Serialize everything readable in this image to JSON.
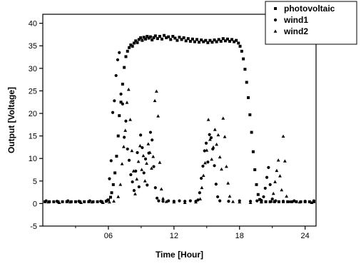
{
  "chart_data": {
    "type": "scatter",
    "title": "",
    "xlabel": "Time [Hour]",
    "ylabel": "Output [Voltage]",
    "xlim": [
      0,
      25
    ],
    "ylim": [
      -5,
      42
    ],
    "grid": false,
    "legend_position": "top-right",
    "x_tick_values": [
      6,
      12,
      18,
      24
    ],
    "x_tick_labels": [
      "06",
      "12",
      "18",
      "24"
    ],
    "y_tick_values": [
      -5,
      0,
      5,
      10,
      15,
      20,
      25,
      30,
      35,
      40
    ],
    "y_tick_labels": [
      "-5",
      "0",
      "5",
      "10",
      "15",
      "20",
      "25",
      "30",
      "35",
      "40"
    ],
    "series": [
      {
        "name": "photovoltaic",
        "marker": "square",
        "points": [
          [
            0.2,
            0.4
          ],
          [
            0.6,
            0.4
          ],
          [
            1.0,
            0.4
          ],
          [
            1.4,
            0.4
          ],
          [
            1.8,
            0.4
          ],
          [
            2.2,
            0.4
          ],
          [
            2.6,
            0.4
          ],
          [
            3.0,
            0.4
          ],
          [
            3.4,
            0.4
          ],
          [
            3.8,
            0.4
          ],
          [
            4.2,
            0.4
          ],
          [
            4.6,
            0.4
          ],
          [
            5.0,
            0.4
          ],
          [
            5.4,
            0.4
          ],
          [
            5.8,
            0.5
          ],
          [
            6.0,
            0.8
          ],
          [
            6.2,
            1.4
          ],
          [
            6.3,
            2.4
          ],
          [
            6.45,
            4.2
          ],
          [
            6.6,
            6.8
          ],
          [
            6.75,
            10.5
          ],
          [
            6.9,
            15.0
          ],
          [
            7.0,
            19.5
          ],
          [
            7.15,
            22.5
          ],
          [
            7.3,
            26.5
          ],
          [
            7.45,
            30.2
          ],
          [
            7.6,
            32.6
          ],
          [
            7.75,
            33.8
          ],
          [
            7.9,
            34.6
          ],
          [
            8.05,
            35.2
          ],
          [
            8.2,
            34.9
          ],
          [
            8.35,
            35.6
          ],
          [
            8.5,
            36.1
          ],
          [
            8.65,
            35.7
          ],
          [
            8.8,
            36.4
          ],
          [
            8.95,
            36.8
          ],
          [
            9.1,
            36.2
          ],
          [
            9.25,
            36.9
          ],
          [
            9.4,
            36.5
          ],
          [
            9.55,
            37.1
          ],
          [
            9.7,
            36.7
          ],
          [
            9.85,
            37.0
          ],
          [
            10.0,
            36.3
          ],
          [
            10.15,
            36.8
          ],
          [
            10.3,
            37.2
          ],
          [
            10.5,
            36.6
          ],
          [
            10.7,
            37.1
          ],
          [
            10.9,
            36.5
          ],
          [
            11.1,
            37.3
          ],
          [
            11.3,
            36.8
          ],
          [
            11.5,
            37.0
          ],
          [
            11.7,
            36.4
          ],
          [
            11.9,
            37.1
          ],
          [
            12.1,
            36.7
          ],
          [
            12.3,
            36.2
          ],
          [
            12.5,
            36.9
          ],
          [
            12.7,
            36.4
          ],
          [
            12.9,
            36.8
          ],
          [
            13.1,
            36.1
          ],
          [
            13.3,
            36.6
          ],
          [
            13.5,
            36.0
          ],
          [
            13.7,
            36.5
          ],
          [
            13.9,
            35.9
          ],
          [
            14.1,
            36.4
          ],
          [
            14.3,
            35.8
          ],
          [
            14.5,
            36.3
          ],
          [
            14.7,
            35.9
          ],
          [
            14.9,
            36.2
          ],
          [
            15.1,
            35.7
          ],
          [
            15.3,
            36.2
          ],
          [
            15.5,
            35.8
          ],
          [
            15.7,
            36.3
          ],
          [
            15.9,
            35.9
          ],
          [
            16.1,
            36.4
          ],
          [
            16.3,
            36.0
          ],
          [
            16.5,
            36.6
          ],
          [
            16.7,
            36.1
          ],
          [
            16.9,
            36.5
          ],
          [
            17.1,
            36.0
          ],
          [
            17.3,
            36.4
          ],
          [
            17.5,
            35.9
          ],
          [
            17.7,
            36.2
          ],
          [
            17.9,
            35.6
          ],
          [
            18.05,
            34.9
          ],
          [
            18.2,
            33.8
          ],
          [
            18.35,
            32.1
          ],
          [
            18.5,
            29.8
          ],
          [
            18.65,
            26.9
          ],
          [
            18.8,
            23.5
          ],
          [
            18.95,
            19.7
          ],
          [
            19.1,
            15.8
          ],
          [
            19.25,
            11.5
          ],
          [
            19.4,
            7.5
          ],
          [
            19.55,
            4.2
          ],
          [
            19.7,
            2.0
          ],
          [
            19.85,
            0.9
          ],
          [
            20.0,
            0.5
          ],
          [
            20.4,
            0.4
          ],
          [
            20.8,
            0.4
          ],
          [
            21.2,
            0.4
          ],
          [
            21.6,
            0.4
          ],
          [
            22.0,
            0.4
          ],
          [
            22.4,
            0.4
          ],
          [
            22.8,
            0.4
          ],
          [
            23.2,
            0.4
          ],
          [
            23.6,
            0.4
          ],
          [
            24.0,
            0.4
          ],
          [
            24.4,
            0.4
          ],
          [
            24.8,
            0.4
          ]
        ]
      },
      {
        "name": "wind1",
        "marker": "circle",
        "points": [
          [
            0.3,
            0.6
          ],
          [
            1.3,
            0.5
          ],
          [
            2.3,
            0.6
          ],
          [
            3.3,
            0.5
          ],
          [
            4.3,
            0.6
          ],
          [
            5.3,
            0.5
          ],
          [
            5.9,
            0.7
          ],
          [
            6.1,
            5.5
          ],
          [
            6.25,
            9.5
          ],
          [
            6.4,
            20.2
          ],
          [
            6.55,
            22.8
          ],
          [
            6.7,
            28.4
          ],
          [
            6.85,
            31.9
          ],
          [
            7.0,
            33.5
          ],
          [
            7.15,
            24.3
          ],
          [
            7.3,
            22.1
          ],
          [
            7.45,
            14.7
          ],
          [
            7.6,
            18.3
          ],
          [
            7.75,
            12.1
          ],
          [
            7.9,
            9.6
          ],
          [
            8.05,
            6.4
          ],
          [
            8.2,
            4.8
          ],
          [
            8.35,
            2.9
          ],
          [
            8.5,
            7.2
          ],
          [
            8.65,
            11.3
          ],
          [
            8.8,
            3.7
          ],
          [
            8.95,
            15.2
          ],
          [
            9.1,
            12.4
          ],
          [
            9.25,
            6.8
          ],
          [
            9.4,
            9.9
          ],
          [
            9.55,
            4.1
          ],
          [
            9.7,
            11.2
          ],
          [
            9.85,
            15.8
          ],
          [
            10.0,
            14.1
          ],
          [
            10.15,
            8.2
          ],
          [
            10.3,
            3.5
          ],
          [
            10.45,
            1.2
          ],
          [
            10.6,
            0.6
          ],
          [
            11.0,
            0.5
          ],
          [
            11.5,
            0.6
          ],
          [
            12.0,
            0.5
          ],
          [
            12.5,
            0.6
          ],
          [
            13.0,
            0.5
          ],
          [
            13.5,
            0.6
          ],
          [
            14.0,
            0.5
          ],
          [
            14.2,
            0.8
          ],
          [
            14.35,
            2.4
          ],
          [
            14.5,
            5.6
          ],
          [
            14.65,
            8.3
          ],
          [
            14.8,
            11.7
          ],
          [
            14.95,
            13.4
          ],
          [
            15.1,
            9.2
          ],
          [
            15.25,
            15.3
          ],
          [
            15.4,
            14.6
          ],
          [
            15.55,
            12.1
          ],
          [
            15.7,
            8.4
          ],
          [
            15.85,
            4.3
          ],
          [
            16.0,
            1.5
          ],
          [
            16.2,
            0.6
          ],
          [
            17.0,
            0.5
          ],
          [
            18.0,
            0.6
          ],
          [
            19.0,
            0.5
          ],
          [
            19.6,
            0.6
          ],
          [
            20.0,
            0.7
          ],
          [
            20.2,
            1.5
          ],
          [
            20.35,
            3.4
          ],
          [
            20.5,
            5.8
          ],
          [
            20.65,
            8.0
          ],
          [
            20.8,
            4.2
          ],
          [
            21.0,
            1.0
          ],
          [
            21.3,
            0.6
          ],
          [
            22.0,
            0.5
          ],
          [
            23.0,
            0.6
          ],
          [
            24.0,
            0.5
          ],
          [
            24.8,
            0.6
          ]
        ]
      },
      {
        "name": "wind2",
        "marker": "triangle",
        "points": [
          [
            0.5,
            0.3
          ],
          [
            1.5,
            0.2
          ],
          [
            2.5,
            0.3
          ],
          [
            3.5,
            0.2
          ],
          [
            4.5,
            0.3
          ],
          [
            5.5,
            0.2
          ],
          [
            6.1,
            0.3
          ],
          [
            6.5,
            0.5
          ],
          [
            6.9,
            1.5
          ],
          [
            7.1,
            4.2
          ],
          [
            7.25,
            8.8
          ],
          [
            7.4,
            12.6
          ],
          [
            7.55,
            16.2
          ],
          [
            7.7,
            22.4
          ],
          [
            7.85,
            25.3
          ],
          [
            8.0,
            18.6
          ],
          [
            8.15,
            11.7
          ],
          [
            8.3,
            7.2
          ],
          [
            8.45,
            2.1
          ],
          [
            8.6,
            5.4
          ],
          [
            8.75,
            9.3
          ],
          [
            8.9,
            12.8
          ],
          [
            9.05,
            7.5
          ],
          [
            9.2,
            10.6
          ],
          [
            9.35,
            5.0
          ],
          [
            9.5,
            8.9
          ],
          [
            9.65,
            13.2
          ],
          [
            9.8,
            11.3
          ],
          [
            9.95,
            7.8
          ],
          [
            10.1,
            10.4
          ],
          [
            10.25,
            22.8
          ],
          [
            10.4,
            24.9
          ],
          [
            10.55,
            19.4
          ],
          [
            10.7,
            9.1
          ],
          [
            10.85,
            3.2
          ],
          [
            11.0,
            1.1
          ],
          [
            11.3,
            0.4
          ],
          [
            12.0,
            0.3
          ],
          [
            13.0,
            0.2
          ],
          [
            14.0,
            0.3
          ],
          [
            14.4,
            1.0
          ],
          [
            14.55,
            3.5
          ],
          [
            14.7,
            6.2
          ],
          [
            14.85,
            9.0
          ],
          [
            15.0,
            11.8
          ],
          [
            15.15,
            18.6
          ],
          [
            15.3,
            14.2
          ],
          [
            15.45,
            9.8
          ],
          [
            15.6,
            12.5
          ],
          [
            15.75,
            16.4
          ],
          [
            15.9,
            13.1
          ],
          [
            16.05,
            15.2
          ],
          [
            16.2,
            10.3
          ],
          [
            16.35,
            7.6
          ],
          [
            16.5,
            18.9
          ],
          [
            16.65,
            14.8
          ],
          [
            16.8,
            8.2
          ],
          [
            16.95,
            4.5
          ],
          [
            17.1,
            1.6
          ],
          [
            17.4,
            0.4
          ],
          [
            18.0,
            0.3
          ],
          [
            19.0,
            0.2
          ],
          [
            20.0,
            0.3
          ],
          [
            20.9,
            0.5
          ],
          [
            21.1,
            2.2
          ],
          [
            21.25,
            4.8
          ],
          [
            21.4,
            7.3
          ],
          [
            21.55,
            9.6
          ],
          [
            21.7,
            6.1
          ],
          [
            21.85,
            3.0
          ],
          [
            22.0,
            14.9
          ],
          [
            22.15,
            9.4
          ],
          [
            22.3,
            1.6
          ],
          [
            22.6,
            0.4
          ],
          [
            23.5,
            0.3
          ],
          [
            24.6,
            0.2
          ]
        ]
      }
    ]
  }
}
